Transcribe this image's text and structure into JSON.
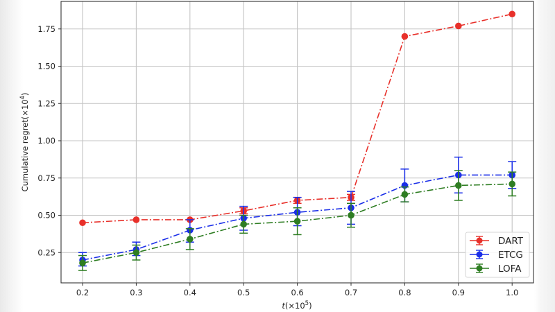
{
  "chart_data": {
    "type": "line",
    "title": "",
    "xlabel": "t(×10^5)",
    "xlabel_main": "t",
    "xlabel_unit": "(×10",
    "xlabel_exp": "5",
    "xlabel_close": ")",
    "ylabel": "Cumulative regret(×10^4)",
    "ylabel_main": "Cumulative regret(×10",
    "ylabel_exp": "4",
    "ylabel_close": ")",
    "x": [
      0.2,
      0.3,
      0.4,
      0.5,
      0.6,
      0.7,
      0.8,
      0.9,
      1.0
    ],
    "xticks": [
      "0.2",
      "0.3",
      "0.4",
      "0.5",
      "0.6",
      "0.7",
      "0.8",
      "0.9",
      "1.0"
    ],
    "yticks": [
      0.25,
      0.5,
      0.75,
      1.0,
      1.25,
      1.5,
      1.75
    ],
    "ytick_labels": [
      "0.25",
      "0.50",
      "0.75",
      "1.00",
      "1.25",
      "1.50",
      "1.75"
    ],
    "xlim": [
      0.16,
      1.04
    ],
    "ylim": [
      0.05,
      1.94
    ],
    "grid": true,
    "legend_position": "lower right",
    "line_style": "dash-dot",
    "series": [
      {
        "name": "DART",
        "color": "#e8302a",
        "values": [
          0.45,
          0.47,
          0.47,
          0.53,
          0.6,
          0.62,
          1.7,
          1.77,
          1.85
        ],
        "err_low": [
          0.45,
          0.47,
          0.47,
          0.51,
          0.58,
          0.6,
          1.7,
          1.77,
          1.85
        ],
        "err_high": [
          0.45,
          0.47,
          0.47,
          0.55,
          0.62,
          0.64,
          1.7,
          1.77,
          1.85
        ]
      },
      {
        "name": "ETCG",
        "color": "#1a2ee8",
        "values": [
          0.2,
          0.27,
          0.4,
          0.48,
          0.52,
          0.55,
          0.7,
          0.77,
          0.77
        ],
        "err_low": [
          0.16,
          0.23,
          0.32,
          0.4,
          0.43,
          0.44,
          0.59,
          0.65,
          0.68
        ],
        "err_high": [
          0.25,
          0.32,
          0.47,
          0.56,
          0.62,
          0.66,
          0.81,
          0.89,
          0.86
        ]
      },
      {
        "name": "LOFA",
        "color": "#2e7d22",
        "values": [
          0.18,
          0.25,
          0.34,
          0.44,
          0.46,
          0.5,
          0.64,
          0.7,
          0.71
        ],
        "err_low": [
          0.13,
          0.2,
          0.27,
          0.38,
          0.37,
          0.42,
          0.59,
          0.6,
          0.63
        ],
        "err_high": [
          0.23,
          0.3,
          0.41,
          0.5,
          0.55,
          0.58,
          0.69,
          0.8,
          0.79
        ]
      }
    ]
  }
}
